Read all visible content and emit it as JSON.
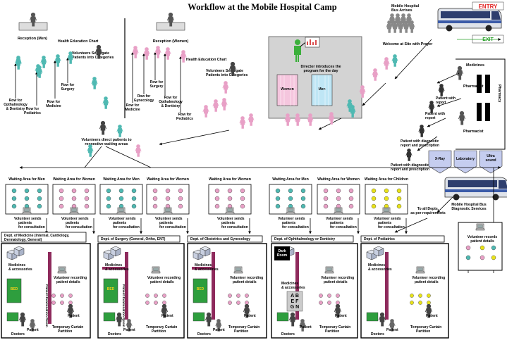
{
  "title": "Workflow at the Mobile Hospital Camp",
  "bus": {
    "arrival": [
      "Mobile Hospital",
      "Bus Arrives"
    ],
    "entry": "ENTRY",
    "exit": "EXIT",
    "welcome": "Welcome at Site with Prayer",
    "diagnostic": [
      "Mobile Hospital Bus",
      "Diagnostic Services"
    ],
    "to_depts": [
      "To all Depts.",
      "as per requirements"
    ]
  },
  "pharmacy": {
    "medicines": "Medicines",
    "pharmacist_top": "Pharmacist",
    "pharmacist_bottom": "Pharmacist",
    "side_label": "Pharmacy"
  },
  "patient_steps": {
    "with_report_1": [
      "Patient with",
      "report"
    ],
    "with_report_2": [
      "Patient with",
      "report"
    ],
    "diag_report_1": [
      "Patient with diagnostic",
      "report and prescription"
    ],
    "diag_report_2": [
      "Patient with diagnostic",
      "report and prescription"
    ]
  },
  "diagnostics": [
    "X-Ray",
    "Laboratory",
    "Ultra sound"
  ],
  "director": {
    "text": [
      "Director introduces the",
      "program for the day"
    ],
    "women": "Women",
    "men": "Men"
  },
  "reception_men": "Reception (Men)",
  "reception_women": "Reception (Women)",
  "health_chart_left": "Health Education Chart",
  "health_chart_right": "Health Education Chart",
  "volunteers_segregate_left": [
    "Volunteers Segregate",
    "Patients into Categories"
  ],
  "volunteers_segregate_right": [
    "Volunteers Segregate",
    "Patients into Categories"
  ],
  "rows_men": [
    {
      "lines": [
        "Row for",
        "Opthalmology",
        "& Dentistry"
      ]
    },
    {
      "lines": [
        "Row for",
        "Pediatrics"
      ]
    },
    {
      "lines": [
        "Row for",
        "Medicine"
      ]
    },
    {
      "lines": [
        "Row for",
        "Surgery"
      ]
    }
  ],
  "rows_women": [
    {
      "lines": [
        "Row for",
        "Medicine"
      ]
    },
    {
      "lines": [
        "Row for",
        "Gynecology"
      ]
    },
    {
      "lines": [
        "Row for",
        "Surgery"
      ]
    },
    {
      "lines": [
        "Row for",
        "Opthalmology",
        "& Dentistry"
      ]
    },
    {
      "lines": [
        "Row for",
        "Pediatrics"
      ]
    }
  ],
  "volunteers_direct": [
    "Volunteers direct patients to",
    "respective waiting areas"
  ],
  "waiting_areas": [
    "Waiting Area for Men",
    "Waiting Area for Women",
    "Waiting Area for Men",
    "Waiting Area for Women",
    "Waiting Area for Women",
    "Waiting Area for Men",
    "Waiting Area for Women",
    "Waiting Area for Children"
  ],
  "volunteer_sends": [
    "Volunteer sends",
    "patients",
    "for consultation"
  ],
  "departments": [
    {
      "name": "Dept. of Medicine (Internal, Cardiology, Dermatology, General)",
      "name_lines": [
        "Dept. of Medicine (Internal, Cardiology,",
        "Dermatology, General)"
      ]
    },
    {
      "name": "Dept. of Surgery (General, Ortho, ENT)",
      "name_lines": [
        "Dept. of Surgery (General, Ortho, ENT)"
      ]
    },
    {
      "name": "Dept. of Obstetrics and Gynecology",
      "name_lines": [
        "Dept. of Obstetrics and Gynecology"
      ]
    },
    {
      "name": "Dept. of Ophthalmology or Dentistry",
      "name_lines": [
        "Dept. of Ophthalmology or Dentistry"
      ]
    },
    {
      "name": "Dept. of Pediatrics",
      "name_lines": [
        "Dept. of Pediatrics"
      ]
    }
  ],
  "room": {
    "medicines": [
      "Medicines",
      "& accessories"
    ],
    "volunteer_recording": [
      "Volunteer recording",
      "patient details"
    ],
    "bed": "BED",
    "exam_room": "Patient Examination Room",
    "patient": "Patient",
    "doctors": "Doctors",
    "curtain": [
      "Temporary Curtain",
      "Partition"
    ]
  },
  "dark_room": [
    "Dark",
    "Room"
  ],
  "eye_chart": [
    "A B",
    "E F",
    "G N"
  ],
  "volunteer_records": [
    "Volunteer records",
    "patient details"
  ],
  "colors": {
    "men": "#4fb9b2",
    "women": "#e8a0c6",
    "children": "#e8e21a",
    "maroon": "#8e2a5c",
    "green": "#2e9e3e",
    "diag": "#c5cdef"
  }
}
